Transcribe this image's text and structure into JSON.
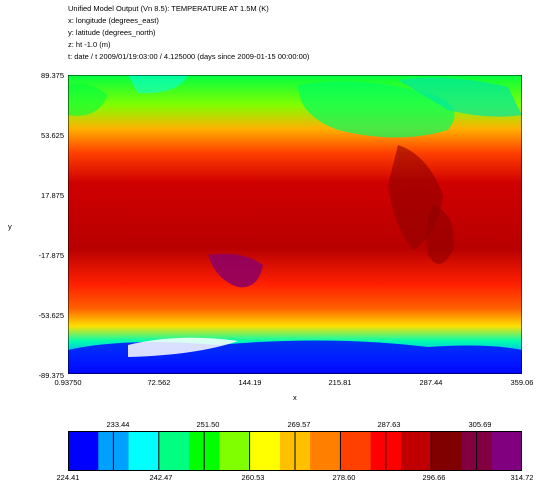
{
  "header": {
    "line1": "Unified Model Output (Vn 8.5): TEMPERATURE AT 1.5M (K)",
    "line2": "x: longitude  (degrees_east)",
    "line3": "y: latitude  (degrees_north)",
    "line4": "z: ht -1.0 (m)",
    "line5": "t: date / t 2009/01/19:03:00 / 4.125000 (days since 2009-01-15 00:00:00)"
  },
  "chart_data": {
    "type": "heatmap",
    "title": "Unified Model Output (Vn 8.5): TEMPERATURE AT 1.5M (K)",
    "xlabel": "x",
    "ylabel": "y",
    "xlim": [
      0.9375,
      359.06
    ],
    "ylim": [
      -89.375,
      89.375
    ],
    "xticks": [
      "0.93750",
      "72.562",
      "144.19",
      "215.81",
      "287.44",
      "359.06"
    ],
    "yticks": [
      "89.375",
      "53.625",
      "17.875",
      "-17.875",
      "-53.625",
      "-89.375"
    ],
    "colorbar": {
      "min": 224.41,
      "max": 314.72,
      "top_labels": [
        "233.44",
        "251.50",
        "269.57",
        "287.63",
        "305.69"
      ],
      "bottom_labels": [
        "224.41",
        "242.47",
        "260.53",
        "278.60",
        "296.66",
        "314.72"
      ],
      "colors": [
        "#0000ff",
        "#00a0ff",
        "#00ffff",
        "#00ff80",
        "#00ff00",
        "#80ff00",
        "#ffff00",
        "#ffc000",
        "#ff8000",
        "#ff4000",
        "#ff0000",
        "#c00000",
        "#800000",
        "#800040",
        "#800080"
      ]
    }
  }
}
